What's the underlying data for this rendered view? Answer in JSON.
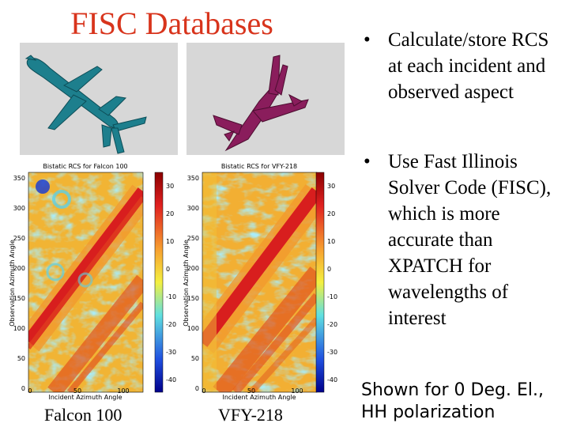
{
  "slide": {
    "title": "FISC Databases",
    "bullets": [
      {
        "marker": "•",
        "text": "Calculate/store RCS at each incident and observed aspect"
      },
      {
        "marker": "•",
        "text": "Use Fast Illinois Solver Code (FISC), which is more accurate than XPATCH for wavelengths of interest"
      }
    ],
    "note_lines": [
      "Shown for 0 Deg. El.,",
      "HH polarization"
    ]
  },
  "thumbnails": [
    {
      "model_color": "#1d7f8d",
      "subject": "Falcon 100"
    },
    {
      "model_color": "#8a1d5c",
      "subject": "VFY-218"
    }
  ],
  "plots": [
    {
      "title": "Bistatic RCS for Falcon 100",
      "xlabel": "Incident Azimuth Angle",
      "ylabel": "Observation Azimuth Angle",
      "x_ticks": [
        "0",
        "50",
        "100"
      ],
      "y_ticks": [
        "350",
        "300",
        "250",
        "200",
        "150",
        "100",
        "50",
        "0"
      ],
      "colorbar_ticks": [
        "30",
        "20",
        "10",
        "0",
        "-10",
        "-20",
        "-30",
        "-40"
      ],
      "caption": "Falcon 100"
    },
    {
      "title": "Bistatic RCS for VFY-218",
      "xlabel": "Incident Azimuth Angle",
      "ylabel": "Observation Azimuth Angle",
      "x_ticks": [
        "0",
        "50",
        "100"
      ],
      "y_ticks": [
        "350",
        "300",
        "250",
        "200",
        "150",
        "100",
        "50",
        "0"
      ],
      "colorbar_ticks": [
        "30",
        "20",
        "10",
        "0",
        "-10",
        "-20",
        "-30",
        "-40"
      ],
      "caption": "VFY-218"
    }
  ],
  "colors": {
    "title": "#d8341c",
    "thumb_bg": "#d7d7d7",
    "map_low": "#1e3fd0",
    "map_mid_low": "#5ed0e6",
    "map_mid": "#f7e04a",
    "map_high": "#f29a2e",
    "map_peak": "#d81e1e"
  }
}
